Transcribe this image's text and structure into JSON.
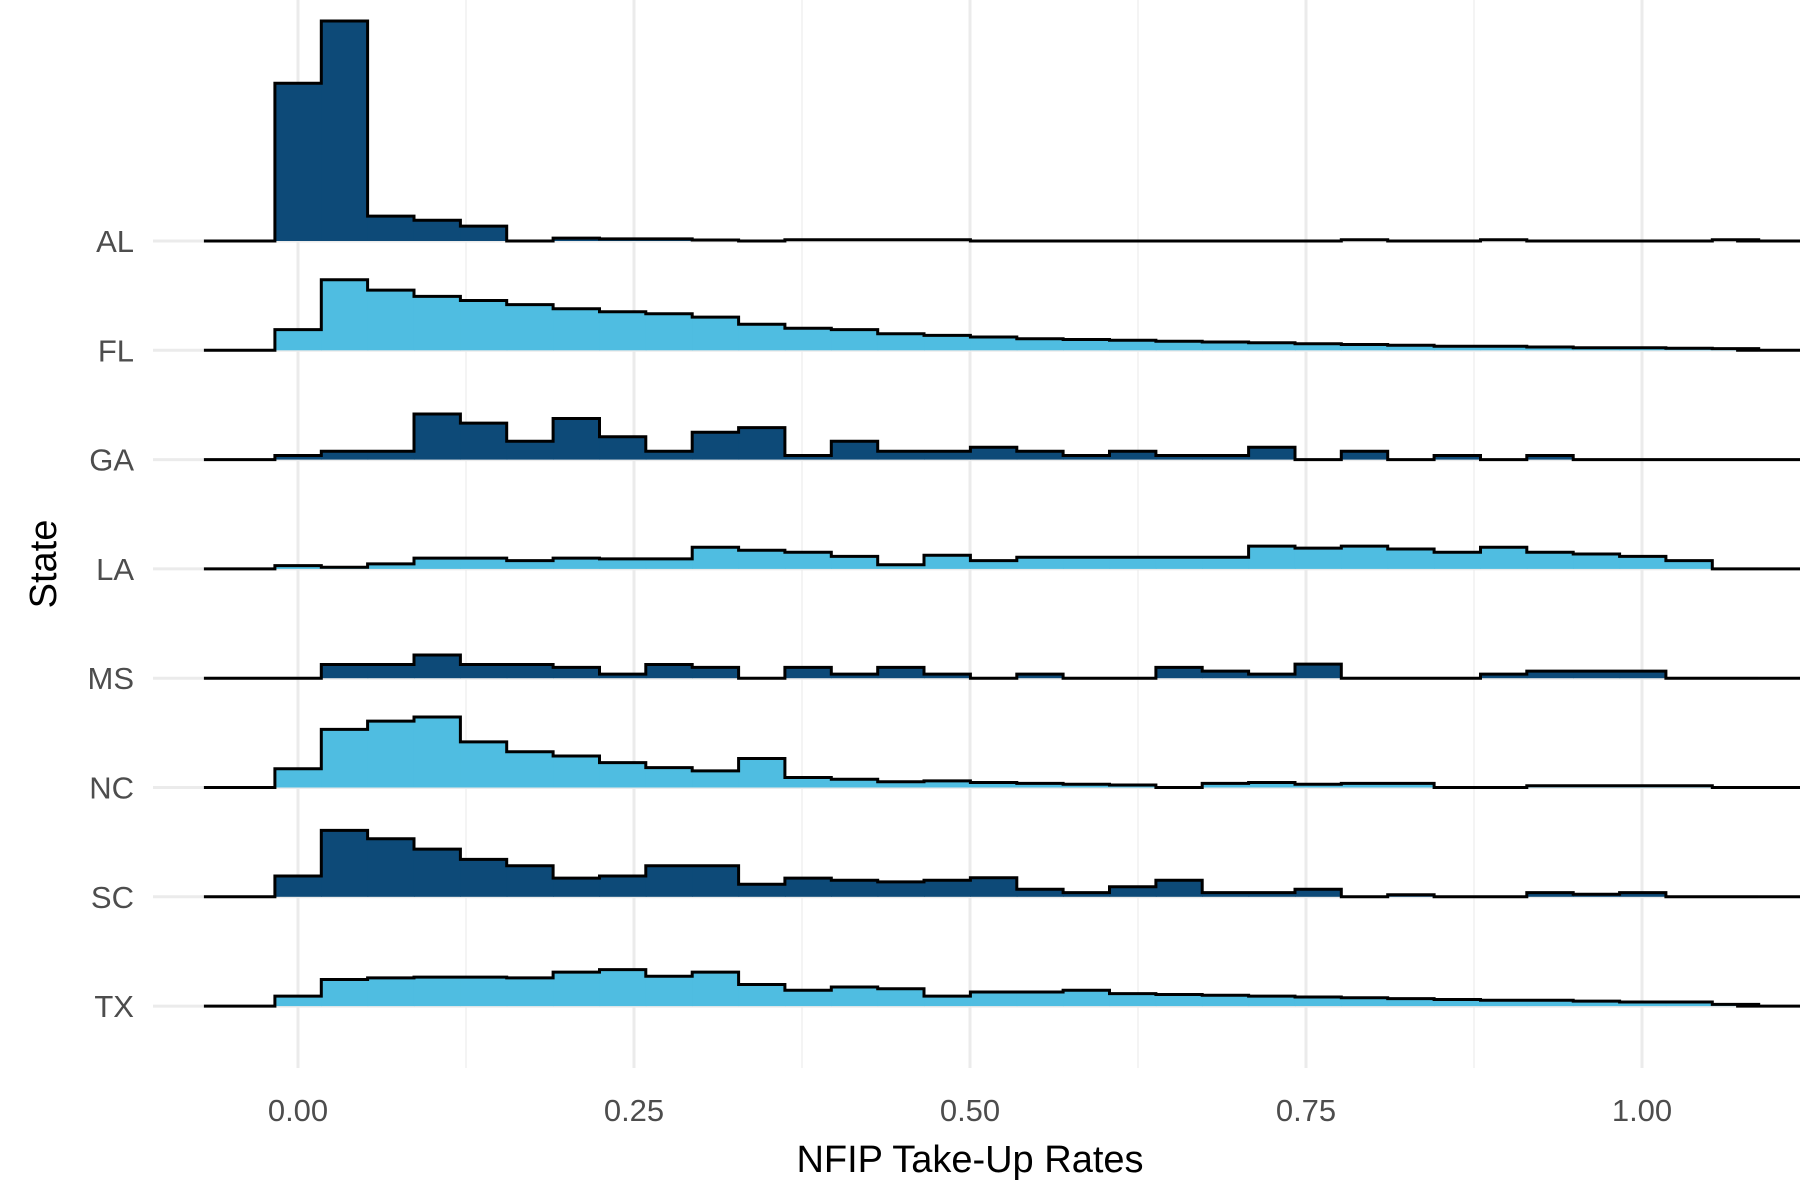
{
  "chart_data": {
    "type": "ridgeline-histogram",
    "title": "",
    "xlabel": "NFIP Take-Up Rates",
    "ylabel": "State",
    "xlim": [
      -0.07,
      1.07
    ],
    "x_ticks": [
      "0.00",
      "0.25",
      "0.50",
      "0.75",
      "1.00"
    ],
    "bin_width": 0.0345,
    "bin_start": -0.0172,
    "colors": {
      "dark": "#0d4a78",
      "light": "#4fbde1",
      "outline": "#000000",
      "grid": "#ebebeb"
    },
    "series": [
      {
        "name": "AL",
        "color": "dark",
        "values": [
          38,
          53,
          6,
          5,
          3.6,
          0,
          0.7,
          0.5,
          0.5,
          0.25,
          0,
          0.3,
          0.3,
          0.3,
          0.3,
          0,
          0,
          0,
          0,
          0,
          0,
          0,
          0,
          0.3,
          0,
          0,
          0.3,
          0,
          0,
          0,
          0,
          0.3,
          0
        ]
      },
      {
        "name": "FL",
        "color": "light",
        "values": [
          5,
          17,
          14.5,
          13,
          12,
          11,
          10,
          9.3,
          8.8,
          8,
          6.3,
          5.3,
          5,
          4,
          3.6,
          3.2,
          2.8,
          2.6,
          2.4,
          2.2,
          2,
          1.8,
          1.6,
          1.4,
          1.2,
          1,
          1,
          0.8,
          0.6,
          0.6,
          0.5,
          0.4,
          0
        ]
      },
      {
        "name": "GA",
        "color": "dark",
        "values": [
          1,
          2,
          2,
          11,
          8.8,
          4.4,
          9.9,
          5.5,
          2,
          6.6,
          7.7,
          1,
          4.4,
          2,
          2,
          3,
          2,
          1,
          2,
          1,
          1,
          3,
          0,
          2,
          0,
          1,
          0,
          1,
          0,
          0,
          0,
          0,
          0
        ]
      },
      {
        "name": "LA",
        "color": "light",
        "values": [
          0.8,
          0.4,
          1.2,
          2.6,
          2.6,
          2,
          2.6,
          2.4,
          2.4,
          5.2,
          4.5,
          4,
          3,
          1,
          3.3,
          2,
          2.8,
          2.8,
          2.8,
          2.8,
          2.8,
          5.5,
          5,
          5.5,
          4.8,
          4,
          5.2,
          4,
          3.6,
          3,
          2,
          0,
          0
        ]
      },
      {
        "name": "MS",
        "color": "dark",
        "values": [
          0,
          3.3,
          3.3,
          5.6,
          3.3,
          3.3,
          2.6,
          1,
          3.3,
          2.6,
          0,
          2.6,
          1,
          2.6,
          1,
          0,
          1,
          0,
          0,
          2.6,
          1.7,
          1,
          3.4,
          0,
          0,
          0,
          1,
          1.7,
          1.7,
          1.7,
          0,
          0,
          0
        ]
      },
      {
        "name": "NC",
        "color": "light",
        "values": [
          4.5,
          14,
          16,
          17,
          11,
          8.6,
          7.6,
          6,
          4.8,
          4,
          7,
          2.4,
          2,
          1.4,
          1.6,
          1.2,
          1,
          0.8,
          0.6,
          0,
          1,
          1.2,
          0.8,
          1,
          1,
          0,
          0,
          0.4,
          0.4,
          0.4,
          0.4,
          0,
          0
        ]
      },
      {
        "name": "SC",
        "color": "dark",
        "values": [
          5,
          16,
          14,
          11.5,
          9,
          7.5,
          4.5,
          5,
          7.5,
          7.5,
          3,
          4.5,
          4,
          3.6,
          4,
          4.6,
          1.8,
          1,
          2.4,
          4,
          1,
          1,
          1.8,
          0,
          0.5,
          0,
          0,
          1,
          0.6,
          1,
          0,
          0,
          0
        ]
      },
      {
        "name": "TX",
        "color": "light",
        "values": [
          2.4,
          6.4,
          6.8,
          7,
          7,
          6.8,
          8.2,
          8.8,
          7.2,
          8.2,
          5.2,
          3.8,
          4.6,
          4.2,
          2.4,
          3.4,
          3.4,
          3.8,
          3,
          2.8,
          2.6,
          2.4,
          2.2,
          2,
          1.8,
          1.6,
          1.4,
          1.4,
          1.2,
          1,
          1,
          0.4,
          0
        ]
      }
    ]
  }
}
